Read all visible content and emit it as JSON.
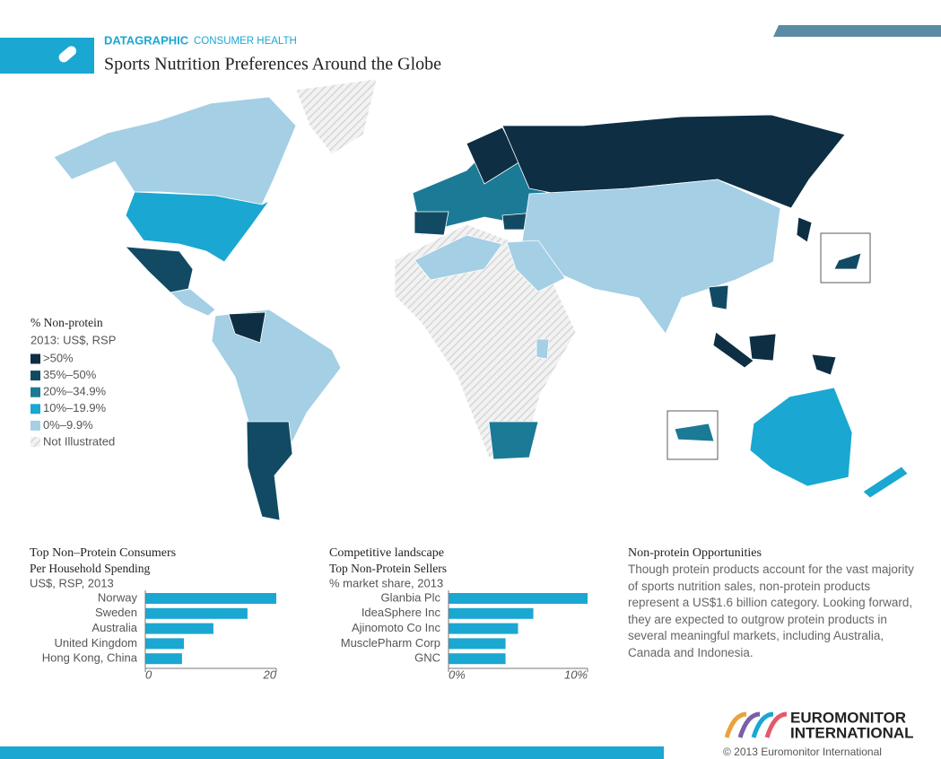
{
  "header": {
    "brand": "DATAGRAPHIC",
    "section": "CONSUMER HEALTH",
    "title": "Sports Nutrition Preferences Around the Globe"
  },
  "legend": {
    "title": "% Non-protein",
    "subtitle": "2013: US$, RSP",
    "items": [
      {
        "label": ">50%",
        "color": "#0e2e44"
      },
      {
        "label": "35%–50%",
        "color": "#124a64"
      },
      {
        "label": "20%–34.9%",
        "color": "#1b7a96"
      },
      {
        "label": "10%–19.9%",
        "color": "#1aa7d2"
      },
      {
        "label": "0%–9.9%",
        "color": "#a4cfe5"
      }
    ],
    "not_illustrated": "Not Illustrated"
  },
  "chart_data": [
    {
      "type": "bar",
      "orientation": "horizontal",
      "title": "Top Non–Protein Consumers",
      "subtitle": "Per Household Spending",
      "units": "US$, RSP, 2013",
      "categories": [
        "Norway",
        "Sweden",
        "Australia",
        "United Kingdom",
        "Hong Kong, China"
      ],
      "values": [
        20,
        15.6,
        10.4,
        5.9,
        5.6
      ],
      "color": "#1aa7d2",
      "xlim": [
        0,
        20
      ],
      "xticks": [
        0,
        20
      ]
    },
    {
      "type": "bar",
      "orientation": "horizontal",
      "title": "Competitive landscape",
      "subtitle": "Top Non-Protein Sellers",
      "units": "% market share, 2013",
      "categories": [
        "Glanbia Plc",
        "IdeaSphere Inc",
        "Ajinomoto Co Inc",
        "MusclePharm Corp",
        "GNC"
      ],
      "values": [
        10,
        6.1,
        5.0,
        4.1,
        4.1
      ],
      "color": "#1aa7d2",
      "xlim": [
        0,
        10
      ],
      "xticks": [
        {
          "value": 0,
          "label": "0%"
        },
        {
          "value": 10,
          "label": "10%"
        }
      ]
    }
  ],
  "opportunities": {
    "title": "Non-protein Opportunities",
    "body": "Though protein products account for the vast majority of sports nutrition sales, non-protein products represent a US$1.6 billion category. Looking forward, they are expected to outgrow protein products in several meaningful markets, including Australia, Canada and Indonesia."
  },
  "footer": {
    "logo_top": "EUROMONITOR",
    "logo_bottom": "INTERNATIONAL",
    "copyright": "© 2013 Euromonitor International"
  }
}
